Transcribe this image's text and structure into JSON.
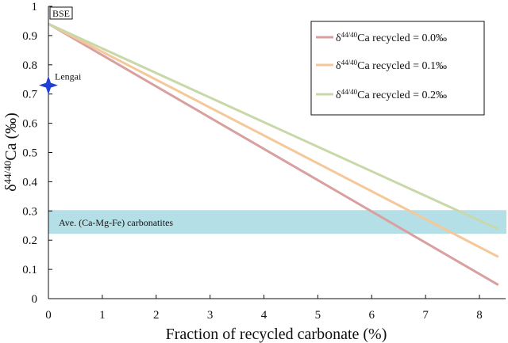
{
  "chart_data": {
    "type": "line",
    "xlabel": "Fraction of recycled carbonate (%)",
    "ylabel_prefix": "δ",
    "ylabel_sup": "44/40",
    "ylabel_suffix": "Ca (‰)",
    "xlim": [
      0,
      8.5
    ],
    "ylim": [
      0,
      1.0
    ],
    "xticks": [
      0,
      1,
      2,
      3,
      4,
      5,
      6,
      7,
      8
    ],
    "yticks": [
      0,
      0.1,
      0.2,
      0.3,
      0.4,
      0.5,
      0.6,
      0.7,
      0.8,
      0.9,
      1
    ],
    "ytick_labels": [
      "0",
      "0.1",
      "0.2",
      "0.3",
      "0.4",
      "0.5",
      "0.6",
      "0.7",
      "0.8",
      "0.9",
      "1"
    ],
    "legend_position": "top-right",
    "series": [
      {
        "name_prefix": "δ",
        "name_sup": "44/40",
        "name_suffix": "Ca recycled = 0.0‰",
        "color": "#d9a0a0",
        "x": [
          0,
          8.35
        ],
        "y": [
          0.94,
          0.047
        ]
      },
      {
        "name_prefix": "δ",
        "name_sup": "44/40",
        "name_suffix": "Ca recycled = 0.1‰",
        "color": "#f5c89a",
        "x": [
          0,
          8.35
        ],
        "y": [
          0.94,
          0.143
        ]
      },
      {
        "name_prefix": "δ",
        "name_sup": "44/40",
        "name_suffix": "Ca recycled = 0.2‰",
        "color": "#c8d8a8",
        "x": [
          0,
          8.35
        ],
        "y": [
          0.94,
          0.238
        ]
      }
    ],
    "band": {
      "label": "Ave. (Ca-Mg-Fe) carbonatites",
      "y_range": [
        0.222,
        0.303
      ],
      "color": "#a8d9e3"
    },
    "point": {
      "label": "Lengai",
      "x": 0,
      "y": 0.73,
      "color": "#1f3fd6"
    },
    "ref_label": "BSE"
  }
}
